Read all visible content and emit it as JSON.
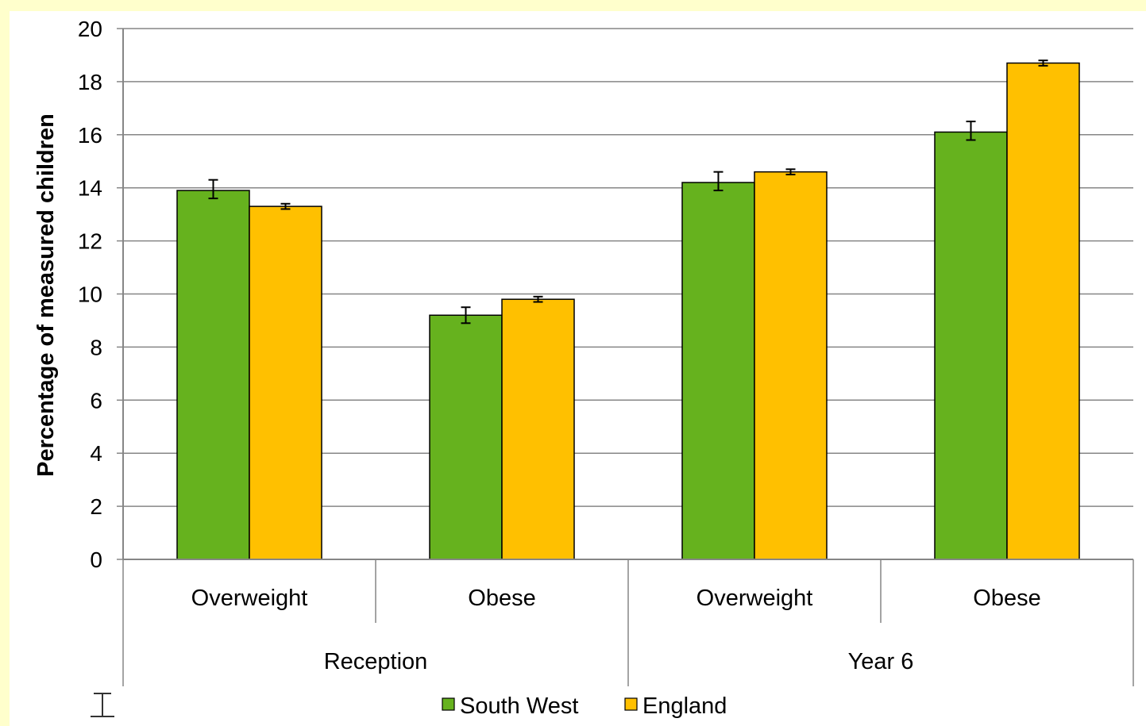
{
  "chart_data": {
    "type": "bar",
    "title": "",
    "xlabel": "",
    "ylabel": "Percentage of measured children",
    "ylim": [
      0,
      20
    ],
    "yticks": [
      0,
      2,
      4,
      6,
      8,
      10,
      12,
      14,
      16,
      18,
      20
    ],
    "grid": true,
    "legend_position": "bottom",
    "groups": [
      {
        "label": "Reception",
        "categories": [
          "Overweight",
          "Obese"
        ]
      },
      {
        "label": "Year 6",
        "categories": [
          "Overweight",
          "Obese"
        ]
      }
    ],
    "categories": [
      "Overweight",
      "Obese",
      "Overweight",
      "Obese"
    ],
    "series": [
      {
        "name": "South West",
        "color": "#66B21E",
        "values": [
          13.9,
          9.2,
          14.2,
          16.1
        ],
        "error_low": [
          13.6,
          8.9,
          13.9,
          15.8
        ],
        "error_high": [
          14.3,
          9.5,
          14.6,
          16.5
        ]
      },
      {
        "name": "England",
        "color": "#FFC000",
        "values": [
          13.3,
          9.8,
          14.6,
          18.7
        ],
        "error_low": [
          13.2,
          9.7,
          14.5,
          18.6
        ],
        "error_high": [
          13.4,
          9.9,
          14.7,
          18.8
        ]
      }
    ]
  }
}
